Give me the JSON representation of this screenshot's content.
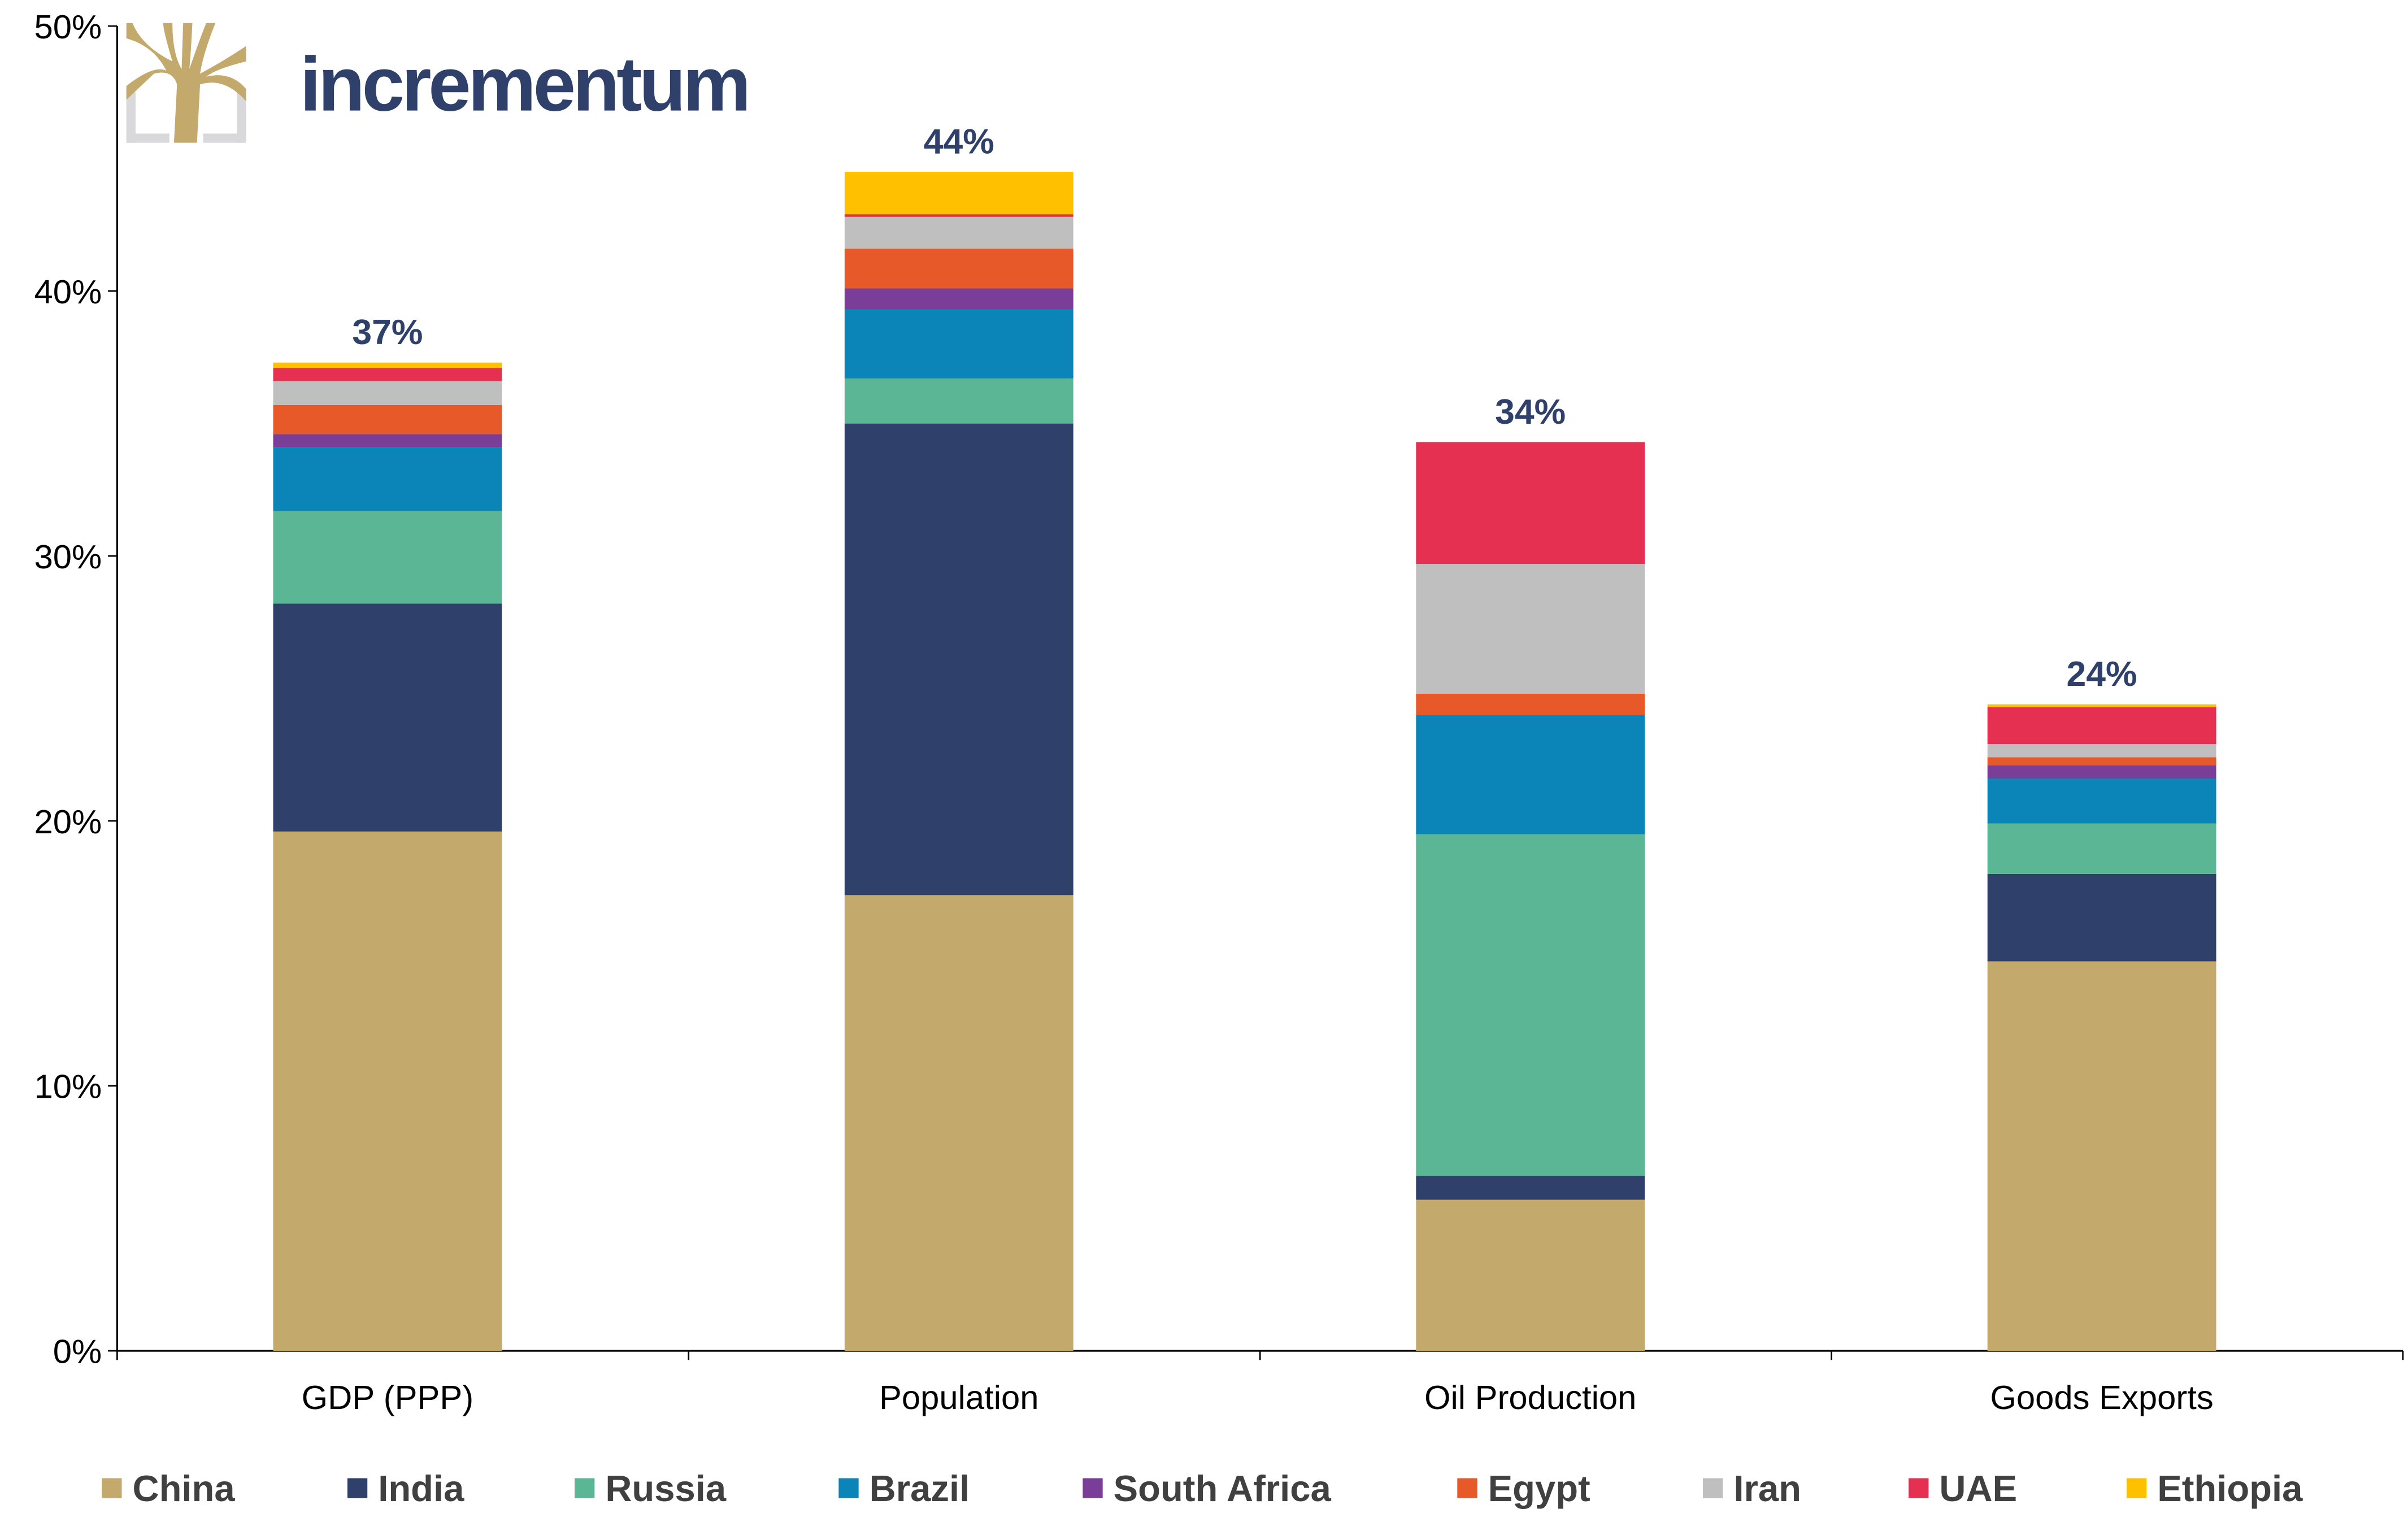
{
  "brand": {
    "name": "incrementum",
    "gold": "#C3A96B",
    "navy": "#2F416B"
  },
  "chart_data": {
    "type": "bar",
    "stacked": true,
    "categories": [
      "GDP (PPP)",
      "Population",
      "Oil Production",
      "Goods Exports"
    ],
    "totals_labels": [
      "37%",
      "44%",
      "34%",
      "24%"
    ],
    "series": [
      {
        "name": "China",
        "color": "#C3A96B",
        "values": [
          19.6,
          17.2,
          5.7,
          14.7
        ]
      },
      {
        "name": "India",
        "color": "#2F416B",
        "values": [
          8.6,
          17.8,
          0.9,
          3.3
        ]
      },
      {
        "name": "Russia",
        "color": "#5BB696",
        "values": [
          3.5,
          1.7,
          12.9,
          1.9
        ]
      },
      {
        "name": "Brazil",
        "color": "#0B84B8",
        "values": [
          2.4,
          2.6,
          4.5,
          1.7
        ]
      },
      {
        "name": "South Africa",
        "color": "#7A3E98",
        "values": [
          0.5,
          0.8,
          0.0,
          0.5
        ]
      },
      {
        "name": "Egypt",
        "color": "#E8592A",
        "values": [
          1.1,
          1.5,
          0.8,
          0.3
        ]
      },
      {
        "name": "Iran",
        "color": "#BFBFBF",
        "values": [
          0.9,
          1.2,
          4.9,
          0.5
        ]
      },
      {
        "name": "UAE",
        "color": "#E63052",
        "values": [
          0.5,
          0.1,
          4.6,
          1.4
        ]
      },
      {
        "name": "Ethiopia",
        "color": "#FFC000",
        "values": [
          0.2,
          1.6,
          0.0,
          0.1
        ]
      }
    ],
    "yticks": [
      "0%",
      "10%",
      "20%",
      "30%",
      "40%",
      "50%"
    ],
    "ylim": [
      0,
      50
    ],
    "grid": false,
    "legend": "bottom"
  }
}
